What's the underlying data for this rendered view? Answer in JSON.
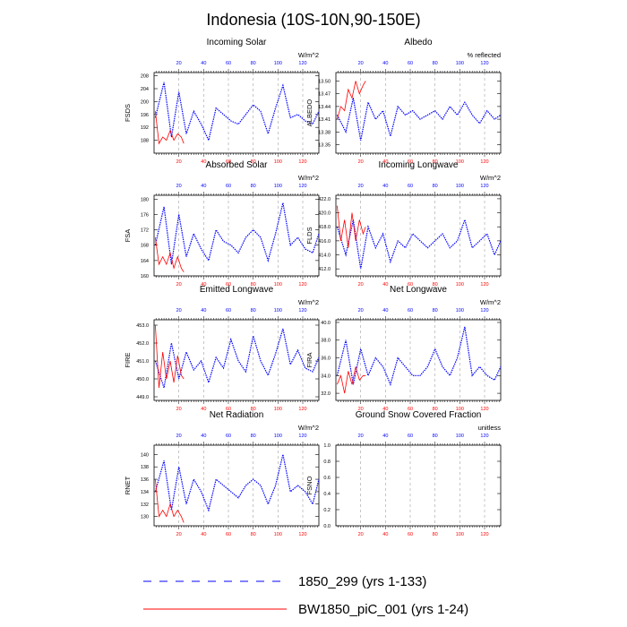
{
  "figure_title": "Indonesia (10S-10N,90-150E)",
  "colors": {
    "control": "#0000ff",
    "experiment": "#ff0000",
    "axis": "#000000",
    "grid": "#a0a0a0"
  },
  "legend": {
    "entries": [
      {
        "label": "1850_299 (yrs 1-133)",
        "style": "dashed"
      },
      {
        "label": "BW1850_piC_001 (yrs 1-24)",
        "style": "solid"
      }
    ]
  },
  "chart_data": [
    {
      "type": "line",
      "title": "Incoming Solar",
      "ylabel": "FSDS",
      "units": "W/m^2",
      "xlim": [
        0,
        133
      ],
      "ylim": [
        184,
        209
      ],
      "yticks": [
        188,
        192,
        196,
        200,
        204,
        208
      ],
      "ytick_labels": [
        "188",
        "192",
        "196",
        "200",
        "204",
        "208"
      ],
      "xticks_bottom": [
        20,
        40,
        60,
        80,
        100,
        120
      ],
      "xticks_top": [
        20,
        40,
        60,
        80,
        100,
        120
      ],
      "series": [
        {
          "name": "1850_299 (yrs 1-133)",
          "color": "#0000ff",
          "style": "dashed",
          "x": [
            1,
            8,
            14,
            20,
            26,
            32,
            38,
            44,
            50,
            56,
            62,
            68,
            74,
            80,
            86,
            92,
            98,
            104,
            110,
            116,
            122,
            128,
            133
          ],
          "y": [
            195,
            206,
            189,
            203,
            190,
            197,
            193,
            188,
            198,
            196,
            194,
            193,
            196,
            199,
            197,
            190,
            198,
            205,
            195,
            196,
            194,
            193,
            197
          ]
        },
        {
          "name": "BW1850_piC_001 (yrs 1-24)",
          "color": "#ff0000",
          "style": "solid",
          "x": [
            1,
            4,
            7,
            10,
            13,
            16,
            19,
            22,
            24
          ],
          "y": [
            197,
            187,
            189,
            188,
            191,
            188,
            190,
            189,
            187
          ]
        }
      ]
    },
    {
      "type": "line",
      "title": "Albedo",
      "ylabel": "ALBEDO",
      "units": "% reflected",
      "xlim": [
        0,
        133
      ],
      "ylim": [
        13.33,
        13.52
      ],
      "yticks": [
        13.35,
        13.38,
        13.41,
        13.44,
        13.47,
        13.5
      ],
      "ytick_labels": [
        "13.35",
        "13.38",
        "13.41",
        "13.44",
        "13.47",
        "13.50"
      ],
      "xticks_bottom": [
        20,
        40,
        60,
        80,
        100,
        120
      ],
      "xticks_top": [
        20,
        40,
        60,
        80,
        100,
        120
      ],
      "series": [
        {
          "name": "1850_299 (yrs 1-133)",
          "color": "#0000ff",
          "style": "dashed",
          "x": [
            1,
            8,
            14,
            20,
            26,
            32,
            38,
            44,
            50,
            56,
            62,
            68,
            74,
            80,
            86,
            92,
            98,
            104,
            110,
            116,
            122,
            128,
            133
          ],
          "y": [
            13.42,
            13.38,
            13.46,
            13.36,
            13.45,
            13.41,
            13.43,
            13.37,
            13.44,
            13.42,
            13.43,
            13.41,
            13.42,
            13.43,
            13.41,
            13.44,
            13.42,
            13.45,
            13.42,
            13.4,
            13.43,
            13.41,
            13.42
          ]
        },
        {
          "name": "BW1850_piC_001 (yrs 1-24)",
          "color": "#ff0000",
          "style": "solid",
          "x": [
            1,
            4,
            7,
            10,
            13,
            16,
            19,
            22,
            24
          ],
          "y": [
            13.41,
            13.44,
            13.43,
            13.48,
            13.46,
            13.5,
            13.47,
            13.49,
            13.5
          ]
        }
      ]
    },
    {
      "type": "line",
      "title": "Absorbed Solar",
      "ylabel": "FSA",
      "units": "W/m^2",
      "xlim": [
        0,
        133
      ],
      "ylim": [
        160,
        181
      ],
      "yticks": [
        160,
        164,
        168,
        172,
        176,
        180
      ],
      "ytick_labels": [
        "160",
        "164",
        "168",
        "172",
        "176",
        "180"
      ],
      "xticks_bottom": [
        20,
        40,
        60,
        80,
        100,
        120
      ],
      "xticks_top": [
        20,
        40,
        60,
        80,
        100,
        120
      ],
      "series": [
        {
          "name": "1850_299 (yrs 1-133)",
          "color": "#0000ff",
          "style": "dashed",
          "x": [
            1,
            8,
            14,
            20,
            26,
            32,
            38,
            44,
            50,
            56,
            62,
            68,
            74,
            80,
            86,
            92,
            98,
            104,
            110,
            116,
            122,
            128,
            133
          ],
          "y": [
            168,
            178,
            163,
            176,
            165,
            171,
            167,
            164,
            172,
            169,
            168,
            166,
            170,
            172,
            170,
            164,
            171,
            179,
            168,
            170,
            167,
            166,
            171
          ]
        },
        {
          "name": "BW1850_piC_001 (yrs 1-24)",
          "color": "#ff0000",
          "style": "solid",
          "x": [
            1,
            4,
            7,
            10,
            13,
            16,
            19,
            22,
            24
          ],
          "y": [
            170,
            163,
            165,
            163,
            166,
            162,
            165,
            162,
            161
          ]
        }
      ]
    },
    {
      "type": "line",
      "title": "Incoming Longwave",
      "ylabel": "FLDS",
      "units": "W/m^2",
      "xlim": [
        0,
        133
      ],
      "ylim": [
        411,
        422.5
      ],
      "yticks": [
        412,
        414,
        416,
        418,
        420,
        422
      ],
      "ytick_labels": [
        "412.0",
        "414.0",
        "416.0",
        "418.0",
        "420.0",
        "422.0"
      ],
      "xticks_bottom": [
        20,
        40,
        60,
        80,
        100,
        120
      ],
      "xticks_top": [
        20,
        40,
        60,
        80,
        100,
        120
      ],
      "series": [
        {
          "name": "1850_299 (yrs 1-133)",
          "color": "#0000ff",
          "style": "dashed",
          "x": [
            1,
            8,
            14,
            20,
            26,
            32,
            38,
            44,
            50,
            56,
            62,
            68,
            74,
            80,
            86,
            92,
            98,
            104,
            110,
            116,
            122,
            128,
            133
          ],
          "y": [
            418,
            414,
            419,
            412,
            418,
            415,
            417,
            413,
            416,
            415,
            417,
            416,
            415,
            416,
            417,
            415,
            416,
            419,
            415,
            416,
            417,
            414,
            416
          ]
        },
        {
          "name": "BW1850_piC_001 (yrs 1-24)",
          "color": "#ff0000",
          "style": "solid",
          "x": [
            1,
            4,
            7,
            10,
            13,
            16,
            19,
            22,
            24
          ],
          "y": [
            421,
            416,
            419,
            415,
            420,
            416,
            419,
            417,
            418
          ]
        }
      ]
    },
    {
      "type": "line",
      "title": "Emitted Longwave",
      "ylabel": "FIRE",
      "units": "W/m^2",
      "xlim": [
        0,
        133
      ],
      "ylim": [
        448.8,
        453.3
      ],
      "yticks": [
        449,
        450,
        451,
        452,
        453
      ],
      "ytick_labels": [
        "449.0",
        "450.0",
        "451.0",
        "452.0",
        "453.0"
      ],
      "xticks_bottom": [
        20,
        40,
        60,
        80,
        100,
        120
      ],
      "xticks_top": [
        20,
        40,
        60,
        80,
        100,
        120
      ],
      "series": [
        {
          "name": "1850_299 (yrs 1-133)",
          "color": "#0000ff",
          "style": "dashed",
          "x": [
            1,
            8,
            14,
            20,
            26,
            32,
            38,
            44,
            50,
            56,
            62,
            68,
            74,
            80,
            86,
            92,
            98,
            104,
            110,
            116,
            122,
            128,
            133
          ],
          "y": [
            451,
            449.5,
            452,
            450,
            451.5,
            450.5,
            451,
            449.8,
            451.2,
            450.6,
            452.2,
            451,
            450.4,
            452.4,
            451,
            450.2,
            451.4,
            452.8,
            450.8,
            451.6,
            450.6,
            450.4,
            451.2
          ]
        },
        {
          "name": "BW1850_piC_001 (yrs 1-24)",
          "color": "#ff0000",
          "style": "solid",
          "x": [
            1,
            4,
            7,
            10,
            13,
            16,
            19,
            22,
            24
          ],
          "y": [
            453,
            449.5,
            451.5,
            450,
            451,
            449.8,
            451.3,
            450.2,
            450
          ]
        }
      ]
    },
    {
      "type": "line",
      "title": "Net Longwave",
      "ylabel": "FIRA",
      "units": "W/m^2",
      "xlim": [
        0,
        133
      ],
      "ylim": [
        31.2,
        40.3
      ],
      "yticks": [
        32,
        34,
        36,
        38,
        40
      ],
      "ytick_labels": [
        "32.0",
        "34.0",
        "36.0",
        "38.0",
        "40.0"
      ],
      "xticks_bottom": [
        20,
        40,
        60,
        80,
        100,
        120
      ],
      "xticks_top": [
        20,
        40,
        60,
        80,
        100,
        120
      ],
      "series": [
        {
          "name": "1850_299 (yrs 1-133)",
          "color": "#0000ff",
          "style": "dashed",
          "x": [
            1,
            8,
            14,
            20,
            26,
            32,
            38,
            44,
            50,
            56,
            62,
            68,
            74,
            80,
            86,
            92,
            98,
            104,
            110,
            116,
            122,
            128,
            133
          ],
          "y": [
            34,
            38,
            33,
            37,
            34,
            36,
            35,
            33,
            36,
            35,
            34,
            34,
            35,
            37,
            35,
            34,
            36,
            39.5,
            34,
            35,
            34,
            33.5,
            35
          ]
        },
        {
          "name": "BW1850_piC_001 (yrs 1-24)",
          "color": "#ff0000",
          "style": "solid",
          "x": [
            1,
            4,
            7,
            10,
            13,
            16,
            19,
            22,
            24
          ],
          "y": [
            33,
            34,
            32,
            34.5,
            33,
            35,
            33.5,
            34,
            34
          ]
        }
      ]
    },
    {
      "type": "line",
      "title": "Net Radiation",
      "ylabel": "RNET",
      "units": "W/m^2",
      "xlim": [
        0,
        133
      ],
      "ylim": [
        128.5,
        141.5
      ],
      "yticks": [
        130,
        132,
        134,
        136,
        138,
        140
      ],
      "ytick_labels": [
        "130",
        "132",
        "134",
        "136",
        "138",
        "140"
      ],
      "xticks_bottom": [
        20,
        40,
        60,
        80,
        100,
        120
      ],
      "xticks_top": [
        20,
        40,
        60,
        80,
        100,
        120
      ],
      "series": [
        {
          "name": "1850_299 (yrs 1-133)",
          "color": "#0000ff",
          "style": "dashed",
          "x": [
            1,
            8,
            14,
            20,
            26,
            32,
            38,
            44,
            50,
            56,
            62,
            68,
            74,
            80,
            86,
            92,
            98,
            104,
            110,
            116,
            122,
            128,
            133
          ],
          "y": [
            134,
            139,
            131,
            138,
            132,
            136,
            134,
            131,
            136,
            135,
            134,
            133,
            135,
            136,
            135,
            132,
            135,
            140,
            134,
            135,
            134,
            132,
            136
          ]
        },
        {
          "name": "BW1850_piC_001 (yrs 1-24)",
          "color": "#ff0000",
          "style": "solid",
          "x": [
            1,
            4,
            7,
            10,
            13,
            16,
            19,
            22,
            24
          ],
          "y": [
            136,
            130,
            131,
            130,
            132,
            130,
            131,
            130,
            129
          ]
        }
      ]
    },
    {
      "type": "line",
      "title": "Ground Snow Covered Fraction",
      "ylabel": "FSNO",
      "units": "unitless",
      "xlim": [
        0,
        133
      ],
      "ylim": [
        0,
        1
      ],
      "yticks": [
        0,
        0.2,
        0.4,
        0.6,
        0.8,
        1.0
      ],
      "ytick_labels": [
        "0.0",
        "0.2",
        "0.4",
        "0.6",
        "0.8",
        "1.0"
      ],
      "xticks_bottom": [
        20,
        40,
        60,
        80,
        100,
        120
      ],
      "xticks_top": [
        20,
        40,
        60,
        80,
        100,
        120
      ],
      "series": []
    }
  ]
}
